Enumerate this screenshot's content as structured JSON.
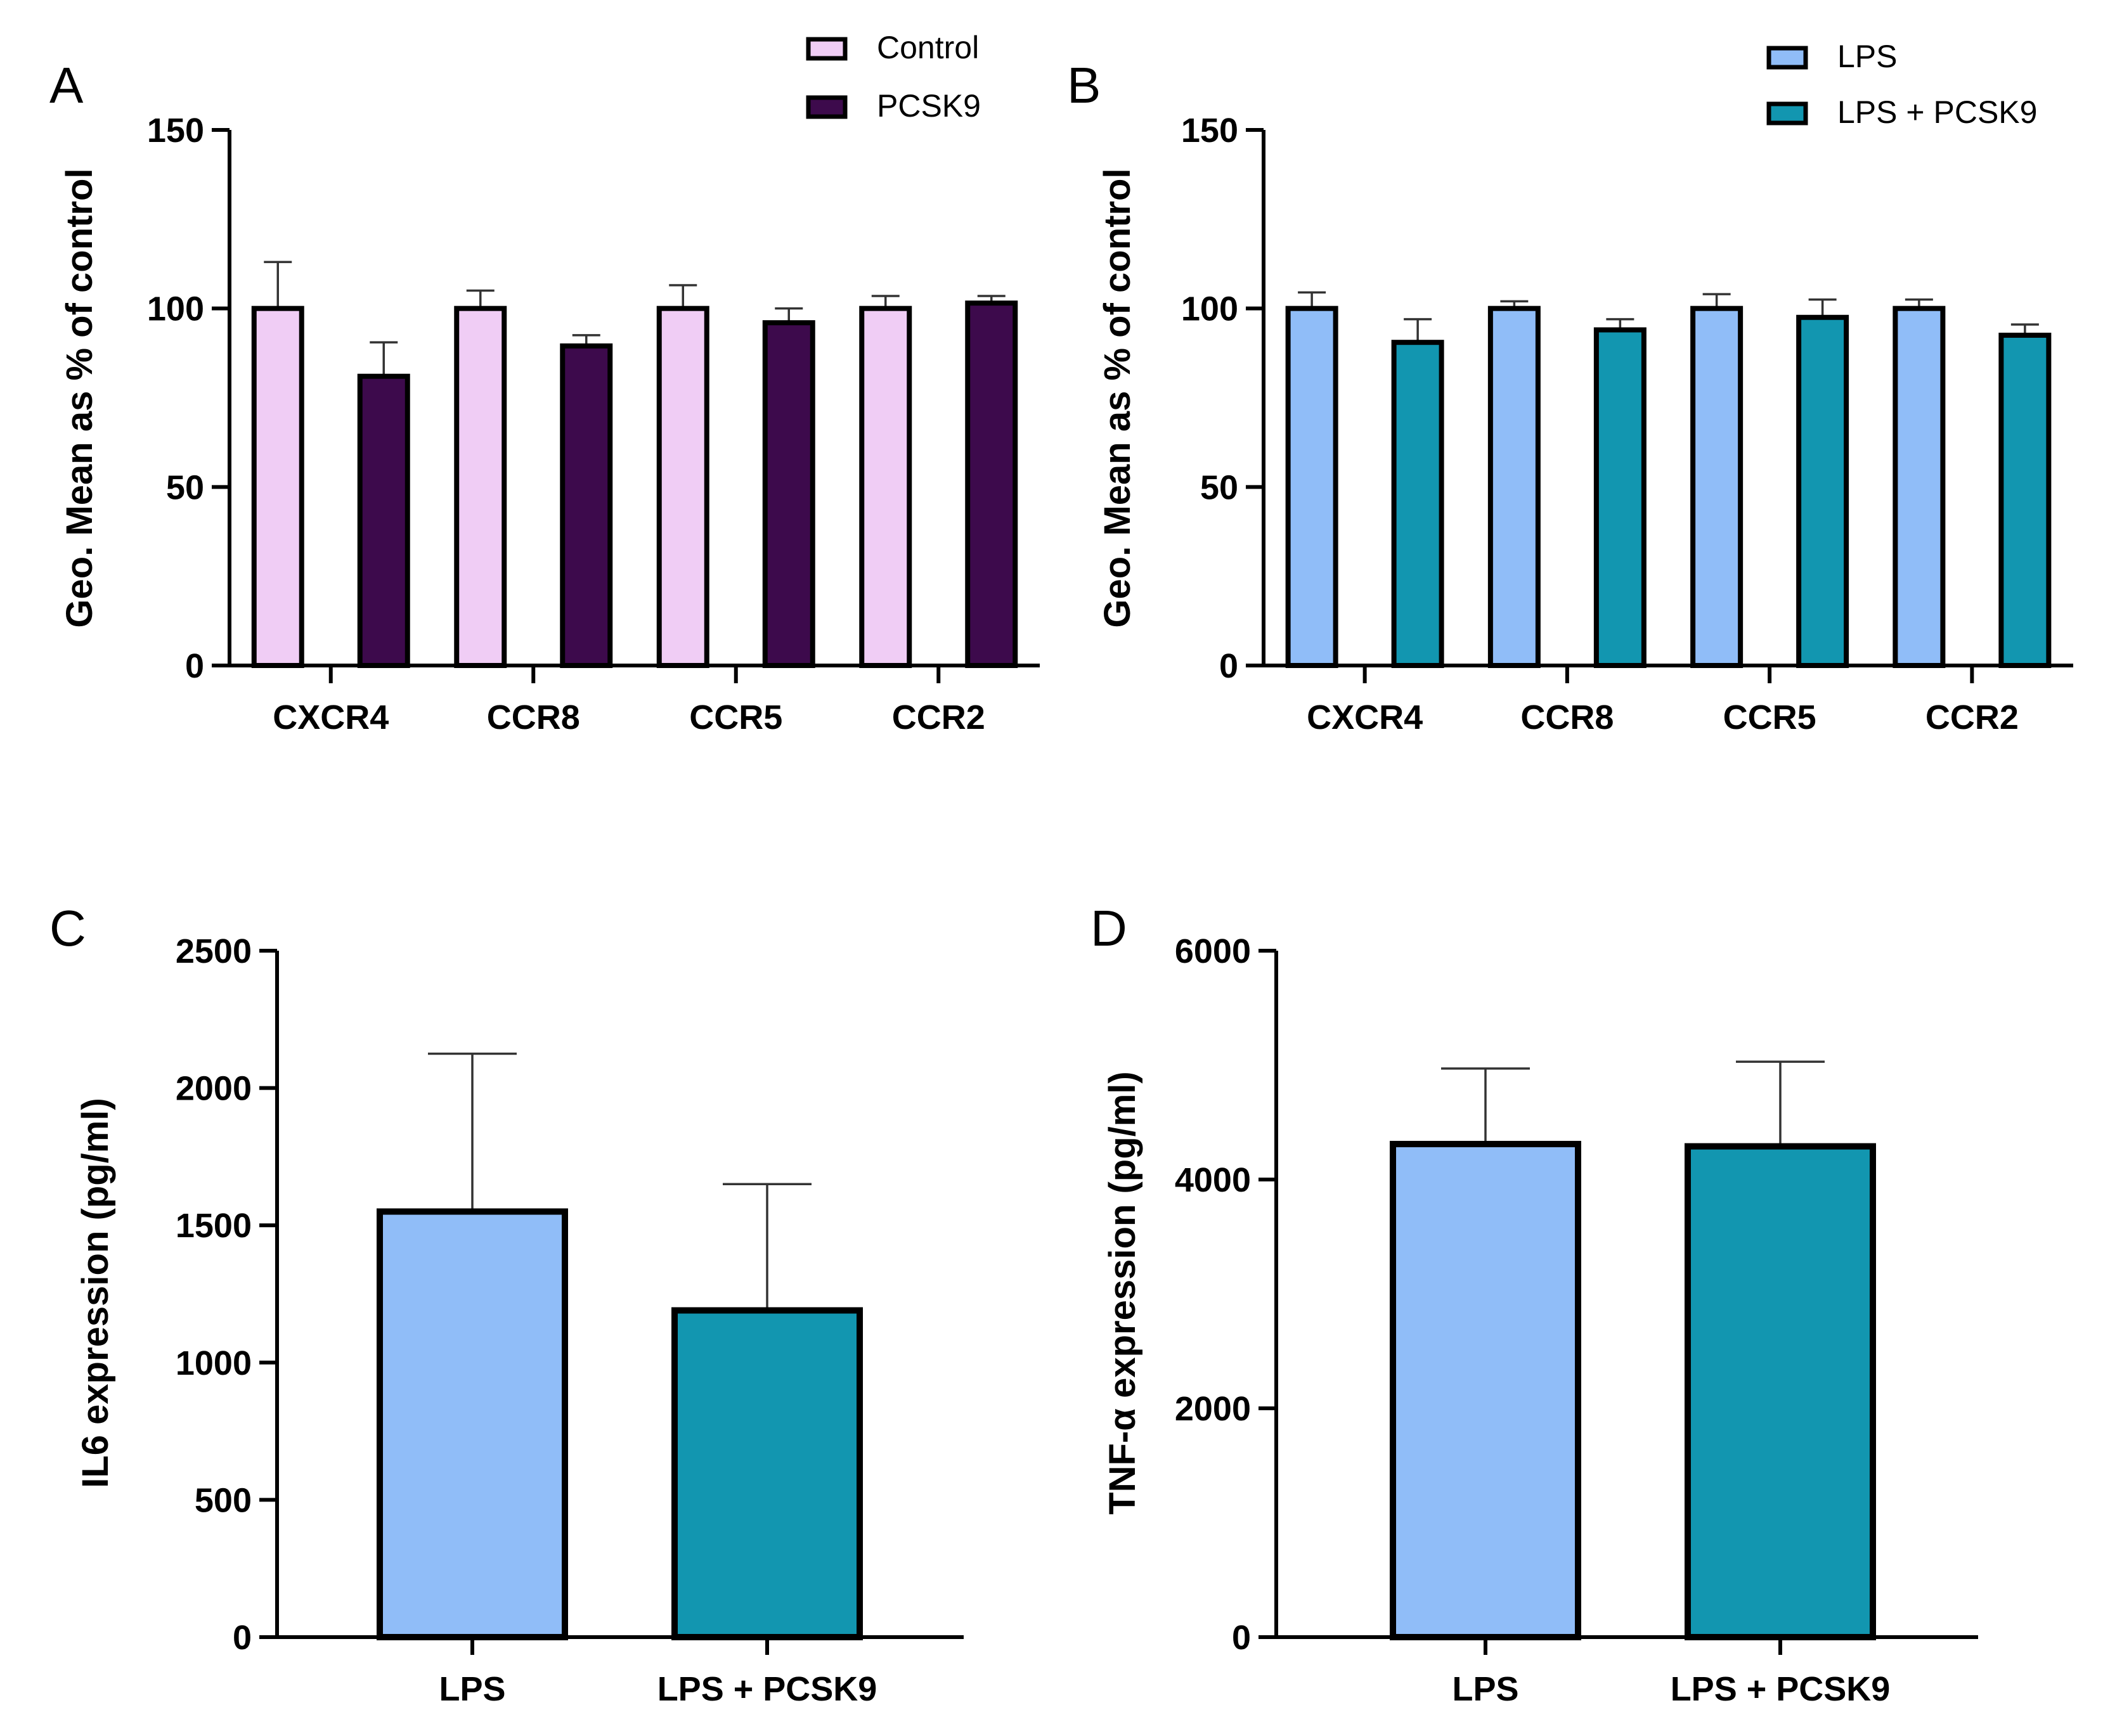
{
  "chart_data": [
    {
      "panel": "A",
      "type": "bar",
      "categories": [
        "CXCR4",
        "CCR8",
        "CCR5",
        "CCR2"
      ],
      "series": [
        {
          "name": "Control",
          "color": "#f0cdf5",
          "values": [
            100,
            100,
            100,
            100
          ],
          "errors": [
            13,
            5,
            6.5,
            3.5
          ]
        },
        {
          "name": "PCSK9",
          "color": "#3d0a4c",
          "values": [
            81,
            89.5,
            96,
            101.5
          ],
          "errors": [
            9.5,
            3,
            4,
            2
          ]
        }
      ],
      "ylabel": "Geo. Mean as %  of control",
      "ylim": [
        0,
        150
      ],
      "yticks": [
        0,
        50,
        100,
        150
      ],
      "legend": "top-right"
    },
    {
      "panel": "B",
      "type": "bar",
      "categories": [
        "CXCR4",
        "CCR8",
        "CCR5",
        "CCR2"
      ],
      "series": [
        {
          "name": "LPS",
          "color": "#90bdf8",
          "values": [
            100,
            100,
            100,
            100
          ],
          "errors": [
            4.5,
            2,
            4,
            2.5
          ]
        },
        {
          "name": "LPS + PCSK9",
          "color": "#1296b0",
          "values": [
            90.5,
            94,
            97.5,
            92.5
          ],
          "errors": [
            6.5,
            3,
            5,
            3
          ]
        }
      ],
      "ylabel": "Geo. Mean as %  of control",
      "ylim": [
        0,
        150
      ],
      "yticks": [
        0,
        50,
        100,
        150
      ],
      "legend": "top-right"
    },
    {
      "panel": "C",
      "type": "bar",
      "categories": [
        "LPS",
        "LPS + PCSK9"
      ],
      "colors": [
        "#90bdf8",
        "#1296b0"
      ],
      "values": [
        1550,
        1190
      ],
      "errors": [
        575,
        460
      ],
      "ylabel": "IL6 expression (pg/ml)",
      "ylim": [
        0,
        2500
      ],
      "yticks": [
        0,
        500,
        1000,
        1500,
        2000,
        2500
      ]
    },
    {
      "panel": "D",
      "type": "bar",
      "categories": [
        "LPS",
        "LPS + PCSK9"
      ],
      "colors": [
        "#90bdf8",
        "#1296b0"
      ],
      "values": [
        4310,
        4290
      ],
      "errors": [
        660,
        740
      ],
      "ylabel": "TNF-α expression (pg/ml)",
      "ylim": [
        0,
        6000
      ],
      "yticks": [
        0,
        2000,
        4000,
        6000
      ]
    }
  ]
}
